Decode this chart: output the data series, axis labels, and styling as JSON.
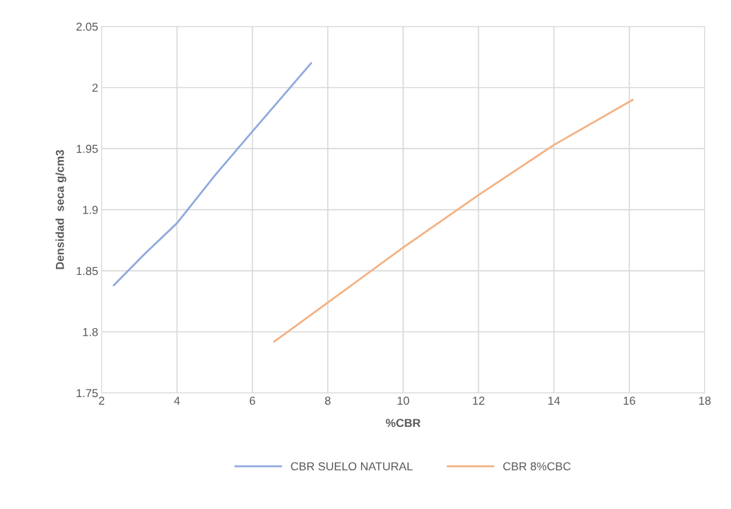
{
  "chart_data": {
    "type": "line",
    "xlabel": "%CBR",
    "ylabel": "Densidad  seca g/cm3",
    "series": [
      {
        "name": "CBR SUELO NATURAL",
        "color": "#8faadc",
        "x": [
          2.32,
          3.15,
          4.0,
          5.03,
          6.0,
          7.56
        ],
        "values": [
          1.838,
          1.864,
          1.889,
          1.929,
          1.964,
          2.02
        ]
      },
      {
        "name": "CBR 8%CBC",
        "color": "#f4b183",
        "x": [
          6.58,
          8.0,
          10.0,
          12.0,
          14.0,
          16.09
        ],
        "values": [
          1.792,
          1.824,
          1.869,
          1.912,
          1.953,
          1.99
        ]
      }
    ],
    "xlim": [
      2,
      18
    ],
    "xticks": [
      2,
      4,
      6,
      8,
      10,
      12,
      14,
      16,
      18
    ],
    "ylim": [
      1.75,
      2.05
    ],
    "yticks": [
      {
        "value": 1.75,
        "label": "1.75"
      },
      {
        "value": 1.8,
        "label": "1.8"
      },
      {
        "value": 1.85,
        "label": "1.85"
      },
      {
        "value": 1.9,
        "label": "1.9"
      },
      {
        "value": 1.95,
        "label": "1.95"
      },
      {
        "value": 2.0,
        "label": "2"
      },
      {
        "value": 2.05,
        "label": "2.05"
      }
    ],
    "grid": true,
    "legend": "bottom",
    "marker": "none",
    "line_style": "solid"
  }
}
